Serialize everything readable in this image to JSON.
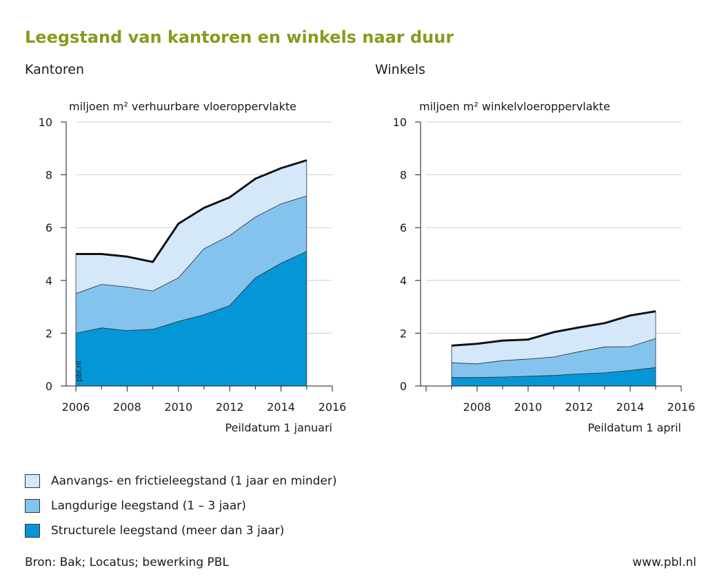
{
  "title": "Leegstand van kantoren en winkels naar duur",
  "subtitles": [
    "Kantoren",
    "Winkels"
  ],
  "colors": {
    "short": "#d4e8f9",
    "medium": "#84c3ee",
    "long": "#0596d8",
    "total_line": "#111111",
    "title": "#8a9a1e"
  },
  "chart_data": [
    {
      "type": "area",
      "subtitle": "Kantoren",
      "unit": "miljoen m² verhuurbare vloeroppervlakte",
      "xlabel": "Peildatum 1 januari",
      "x": [
        2006,
        2007,
        2008,
        2009,
        2010,
        2011,
        2012,
        2013,
        2014,
        2015
      ],
      "xlim": [
        2006,
        2016
      ],
      "ylim": [
        0,
        10
      ],
      "xticks": [
        2006,
        2008,
        2010,
        2012,
        2014,
        2016
      ],
      "yticks": [
        0,
        2,
        4,
        6,
        8,
        10
      ],
      "watermark": "pbl.nl",
      "series": [
        {
          "name": "Structurele leegstand (meer dan 3 jaar)",
          "values": [
            2.0,
            2.2,
            2.1,
            2.15,
            2.45,
            2.7,
            3.05,
            4.1,
            4.65,
            5.1
          ]
        },
        {
          "name": "Langdurige leegstand (1 – 3 jaar)",
          "values": [
            1.5,
            1.65,
            1.65,
            1.45,
            1.65,
            2.5,
            2.65,
            2.3,
            2.25,
            2.1
          ]
        },
        {
          "name": "Aanvangs-  en frictieleegstand (1 jaar en minder)",
          "values": [
            1.5,
            1.15,
            1.15,
            1.1,
            2.05,
            1.55,
            1.45,
            1.45,
            1.35,
            1.35
          ]
        }
      ],
      "total": [
        5.0,
        5.0,
        4.9,
        4.7,
        6.15,
        6.75,
        7.15,
        7.85,
        8.25,
        8.55
      ],
      "grid": true,
      "legend": "bottom"
    },
    {
      "type": "area",
      "subtitle": "Winkels",
      "unit": "miljoen m² winkelvloeroppervlakte",
      "xlabel": "Peildatum 1 april",
      "x": [
        2007,
        2008,
        2009,
        2010,
        2011,
        2012,
        2013,
        2014,
        2015
      ],
      "xlim": [
        2006,
        2016
      ],
      "ylim": [
        0,
        10
      ],
      "xticks": [
        2008,
        2010,
        2012,
        2014,
        2016
      ],
      "yticks": [
        0,
        2,
        4,
        6,
        8,
        10
      ],
      "series": [
        {
          "name": "Structurele leegstand (meer dan 3 jaar)",
          "values": [
            0.32,
            0.32,
            0.34,
            0.37,
            0.4,
            0.46,
            0.5,
            0.59,
            0.7
          ]
        },
        {
          "name": "Langdurige leegstand (1 – 3 jaar)",
          "values": [
            0.56,
            0.52,
            0.62,
            0.65,
            0.7,
            0.84,
            0.98,
            0.9,
            1.1
          ]
        },
        {
          "name": "Aanvangs-  en frictieleegstand (1 jaar en minder)",
          "values": [
            0.65,
            0.76,
            0.76,
            0.74,
            0.94,
            0.92,
            0.9,
            1.18,
            1.03
          ]
        }
      ],
      "total": [
        1.53,
        1.6,
        1.72,
        1.76,
        2.04,
        2.22,
        2.38,
        2.67,
        2.83
      ],
      "grid": true,
      "legend": "bottom"
    }
  ],
  "legend": [
    {
      "label": "Aanvangs-  en frictieleegstand (1 jaar en minder)",
      "color": "#d4e8f9"
    },
    {
      "label": "Langdurige leegstand (1 – 3 jaar)",
      "color": "#84c3ee"
    },
    {
      "label": "Structurele leegstand (meer dan 3 jaar)",
      "color": "#0596d8"
    }
  ],
  "source": "Bron: Bak; Locatus; bewerking PBL",
  "website": "www.pbl.nl"
}
